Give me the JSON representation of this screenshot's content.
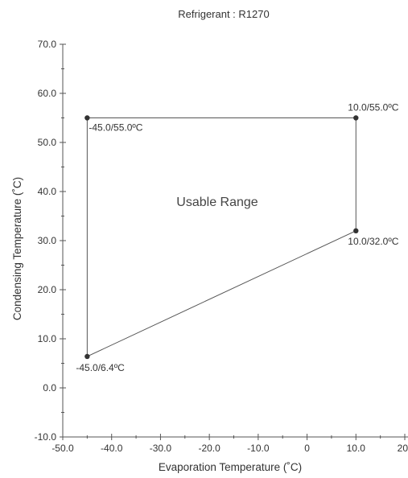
{
  "chart_data": {
    "type": "line",
    "title": "Refrigerant : R1270",
    "xlabel": "Evaporation Temperature (˚C)",
    "ylabel": "Condensing Temperature (˚C)",
    "xlim": [
      -50,
      20
    ],
    "ylim": [
      -10,
      70
    ],
    "x_ticks": [
      -50,
      -40,
      -30,
      -20,
      -10,
      0,
      10,
      20
    ],
    "x_tick_labels": [
      "-50.0",
      "-40.0",
      "-30.0",
      "-20.0",
      "-10.0",
      "0",
      "10.0",
      "20"
    ],
    "y_ticks": [
      -10,
      0,
      10,
      20,
      30,
      40,
      50,
      60,
      70
    ],
    "y_tick_labels": [
      "-10.0",
      "0.0",
      "10.0",
      "20.0",
      "30.0",
      "40.0",
      "50.0",
      "60.0",
      "70.0"
    ],
    "grid": false,
    "region_label": "Usable Range",
    "series": [
      {
        "points": [
          {
            "x": -45.0,
            "y": 55.0,
            "label": "-45.0/55.0ºC"
          },
          {
            "x": 10.0,
            "y": 55.0,
            "label": "10.0/55.0ºC"
          },
          {
            "x": 10.0,
            "y": 32.0,
            "label": "10.0/32.0ºC"
          },
          {
            "x": -45.0,
            "y": 6.4,
            "label": "-45.0/6.4ºC"
          }
        ],
        "closed": true
      }
    ],
    "colors": {
      "line": "#555555",
      "marker": "#333333",
      "axis": "#555555"
    }
  }
}
